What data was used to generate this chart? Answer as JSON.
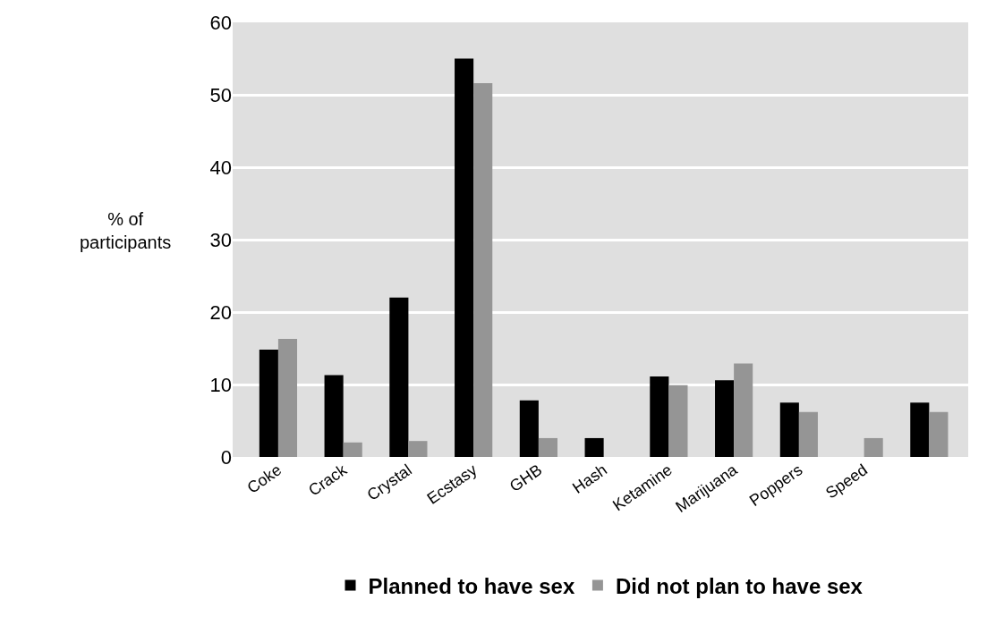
{
  "chart_data": {
    "type": "bar",
    "ylabel": "% of\nparticipants",
    "categories": [
      "Coke",
      "Crack",
      "Crystal",
      "Ecstasy",
      "GHB",
      "Hash",
      "Ketamine",
      "Marijuana",
      "Poppers",
      "Speed",
      null
    ],
    "series": [
      {
        "name": "Planned to have sex",
        "color": "#000000",
        "values": [
          14.8,
          11.3,
          22.0,
          55.0,
          7.8,
          2.6,
          11.1,
          10.6,
          7.5,
          null,
          7.5
        ]
      },
      {
        "name": "Did not plan to have sex",
        "color": "#959595",
        "values": [
          16.3,
          2.0,
          2.2,
          51.6,
          2.6,
          null,
          9.9,
          12.9,
          6.2,
          2.6,
          6.2
        ]
      }
    ],
    "ylim": [
      0,
      60
    ],
    "yticks": [
      0,
      10,
      20,
      30,
      40,
      50,
      60
    ],
    "grid": "y",
    "legend": "bottom"
  }
}
